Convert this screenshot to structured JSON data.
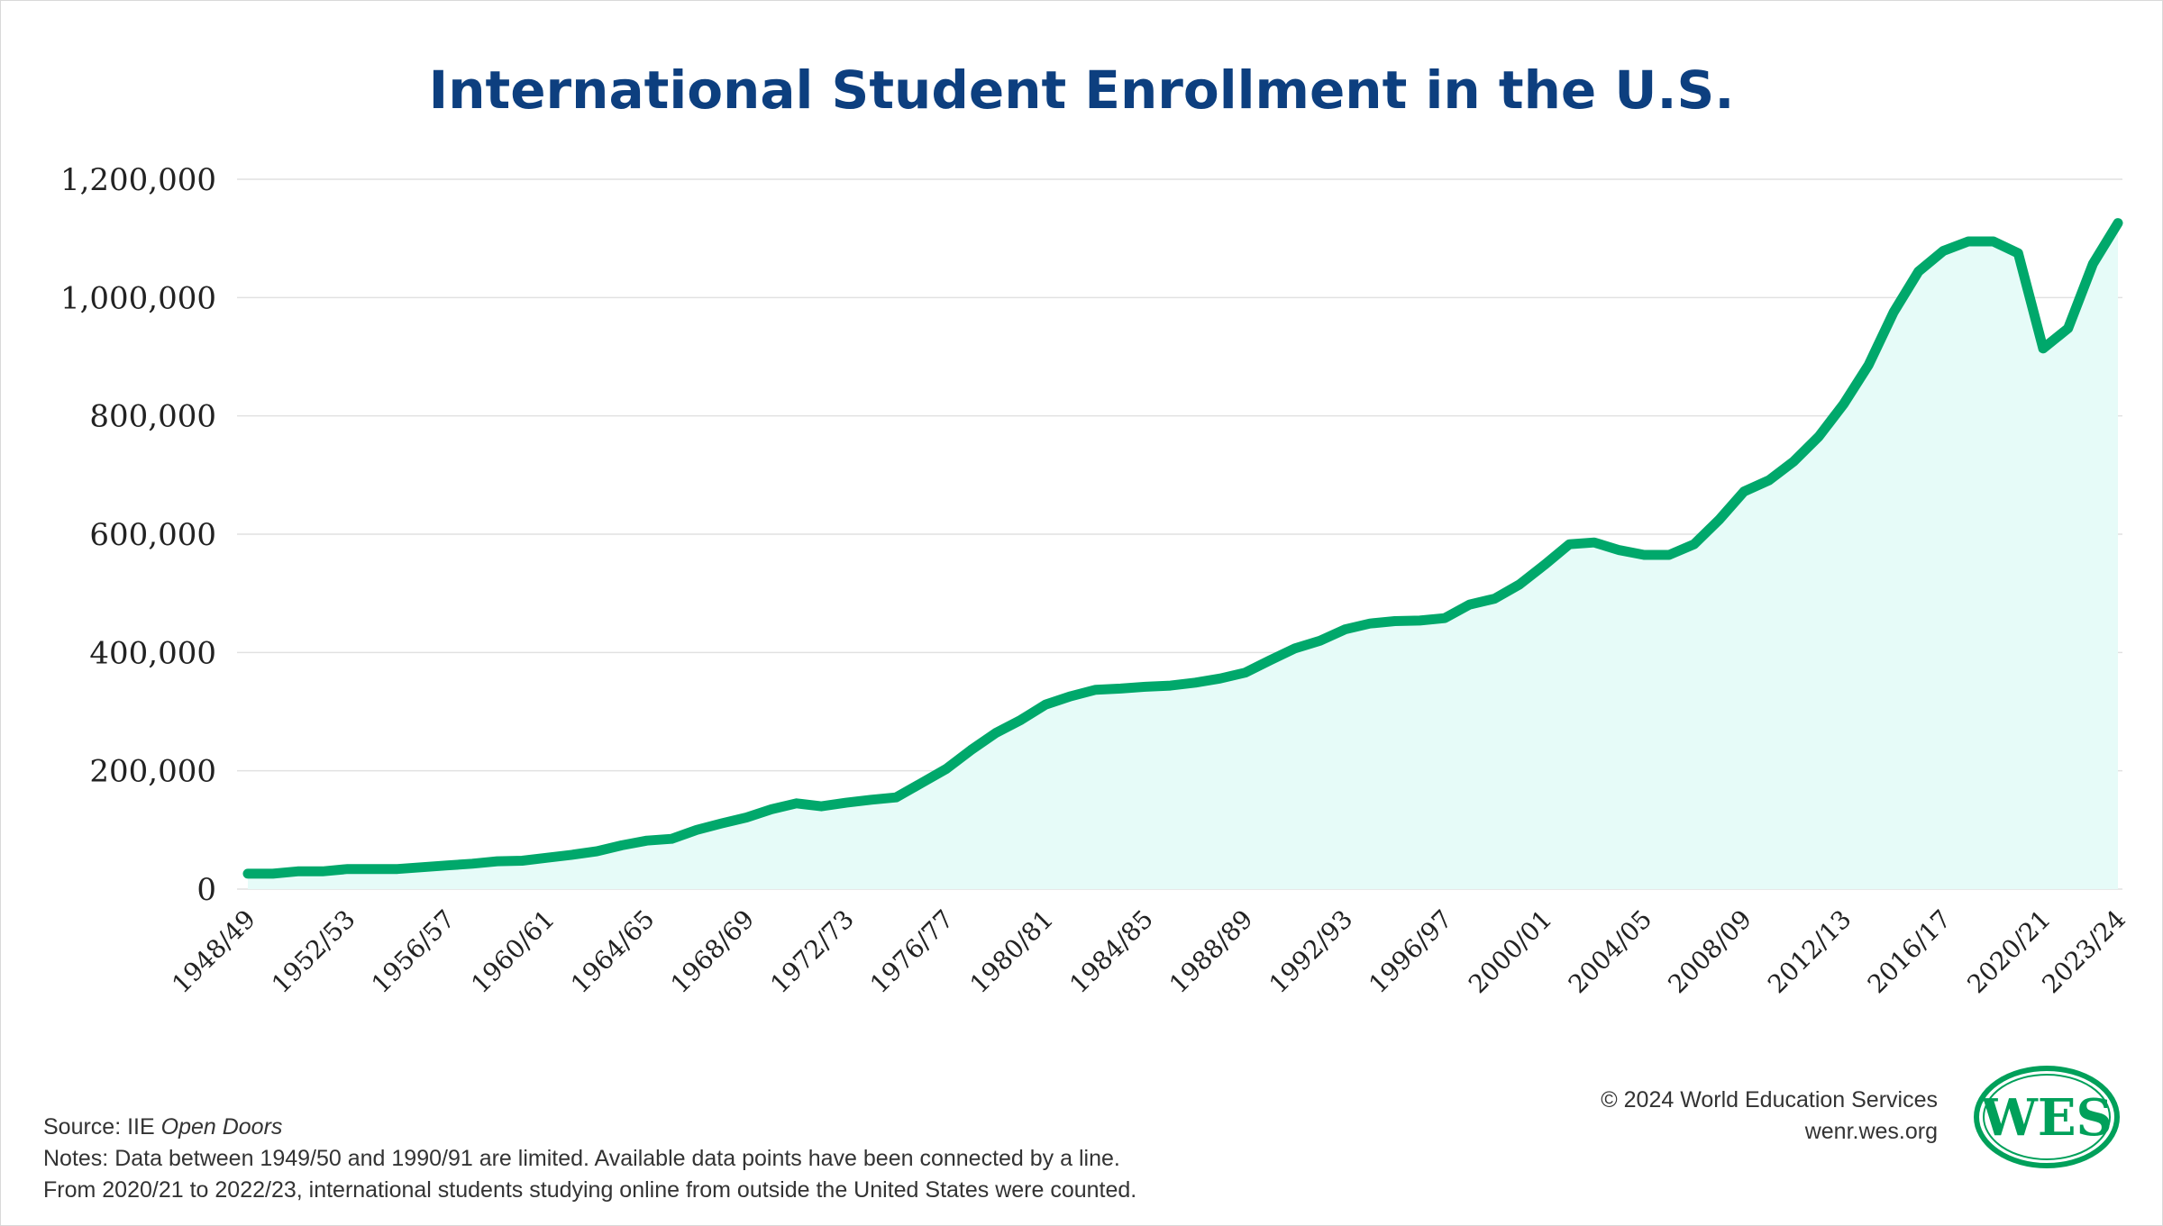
{
  "title": "International Student Enrollment in the U.S.",
  "footer": {
    "source_prefix": "Source: IIE ",
    "source_title": "Open Doors",
    "note_1": "Notes: Data between 1949/50 and 1990/91 are limited. Available data points have been connected by a line.",
    "note_2": "From 2020/21 to 2022/23, international students studying online from outside the United States were counted.",
    "copyright": "© 2024 World Education Services",
    "website": "wenr.wes.org"
  },
  "logo": {
    "text": "WES",
    "color": "#00a05a"
  },
  "colors": {
    "line": "#00a86b",
    "area": "#e6fbf8",
    "grid": "#e1e1e1",
    "title": "#0d3f7f"
  },
  "chart_data": {
    "type": "area",
    "title": "International Student Enrollment in the U.S.",
    "xlabel": "",
    "ylabel": "",
    "ylim": [
      0,
      1200000
    ],
    "y_ticks": [
      0,
      200000,
      400000,
      600000,
      800000,
      1000000,
      1200000
    ],
    "y_tick_labels": [
      "0",
      "200,000",
      "400,000",
      "600,000",
      "800,000",
      "1,000,000",
      "1,200,000"
    ],
    "x_tick_labels": [
      "1948/49",
      "1952/53",
      "1956/57",
      "1960/61",
      "1964/65",
      "1968/69",
      "1972/73",
      "1976/77",
      "1980/81",
      "1984/85",
      "1988/89",
      "1992/93",
      "1996/97",
      "2000/01",
      "2004/05",
      "2008/09",
      "2012/13",
      "2016/17",
      "2020/21",
      "2023/24"
    ],
    "x_tick_years": [
      1948,
      1952,
      1956,
      1960,
      1964,
      1968,
      1972,
      1976,
      1980,
      1984,
      1988,
      1992,
      1996,
      2000,
      2004,
      2008,
      2012,
      2016,
      2020,
      2023
    ],
    "grid": true,
    "series": [
      {
        "points": [
          [
            1948,
            26000
          ],
          [
            1949,
            26000
          ],
          [
            1950,
            30000
          ],
          [
            1951,
            30000
          ],
          [
            1952,
            34000
          ],
          [
            1953,
            34000
          ],
          [
            1954,
            34000
          ],
          [
            1955,
            37000
          ],
          [
            1956,
            40000
          ],
          [
            1957,
            43000
          ],
          [
            1958,
            47000
          ],
          [
            1959,
            48000
          ],
          [
            1960,
            53000
          ],
          [
            1961,
            58000
          ],
          [
            1962,
            64000
          ],
          [
            1963,
            74000
          ],
          [
            1964,
            82000
          ],
          [
            1965,
            85000
          ],
          [
            1966,
            100000
          ],
          [
            1967,
            111000
          ],
          [
            1968,
            121000
          ],
          [
            1969,
            135000
          ],
          [
            1970,
            145000
          ],
          [
            1971,
            140000
          ],
          [
            1972,
            146000
          ],
          [
            1973,
            151000
          ],
          [
            1974,
            155000
          ],
          [
            1975,
            179000
          ],
          [
            1976,
            203000
          ],
          [
            1977,
            235000
          ],
          [
            1978,
            264000
          ],
          [
            1979,
            286000
          ],
          [
            1980,
            312000
          ],
          [
            1981,
            326000
          ],
          [
            1982,
            337000
          ],
          [
            1983,
            339000
          ],
          [
            1984,
            342000
          ],
          [
            1985,
            344000
          ],
          [
            1986,
            349000
          ],
          [
            1987,
            356000
          ],
          [
            1988,
            366000
          ],
          [
            1989,
            387000
          ],
          [
            1990,
            407000
          ],
          [
            1991,
            420000
          ],
          [
            1992,
            439000
          ],
          [
            1993,
            449000
          ],
          [
            1994,
            453000
          ],
          [
            1995,
            454000
          ],
          [
            1996,
            458000
          ],
          [
            1997,
            481000
          ],
          [
            1998,
            491000
          ],
          [
            1999,
            515000
          ],
          [
            2000,
            548000
          ],
          [
            2001,
            583000
          ],
          [
            2002,
            586000
          ],
          [
            2003,
            573000
          ],
          [
            2004,
            565000
          ],
          [
            2005,
            565000
          ],
          [
            2006,
            583000
          ],
          [
            2007,
            624000
          ],
          [
            2008,
            672000
          ],
          [
            2009,
            691000
          ],
          [
            2010,
            723000
          ],
          [
            2011,
            765000
          ],
          [
            2012,
            820000
          ],
          [
            2013,
            886000
          ],
          [
            2014,
            975000
          ],
          [
            2015,
            1044000
          ],
          [
            2016,
            1079000
          ],
          [
            2017,
            1095000
          ],
          [
            2018,
            1095000
          ],
          [
            2019,
            1075000
          ],
          [
            2020,
            914000
          ],
          [
            2021,
            948000
          ],
          [
            2022,
            1057000
          ],
          [
            2023,
            1126000
          ]
        ]
      }
    ]
  }
}
